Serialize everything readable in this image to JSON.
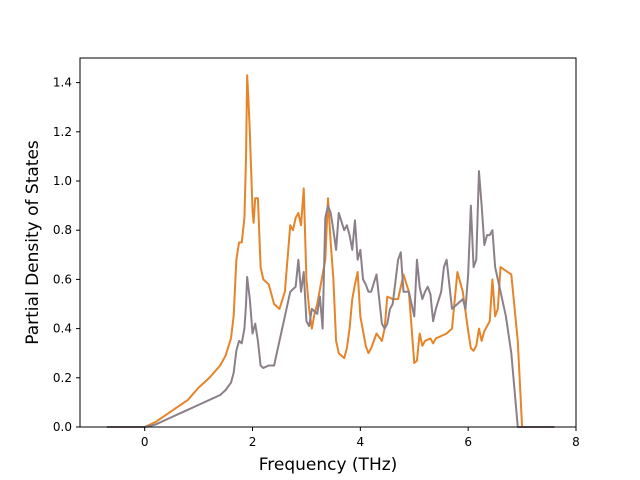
{
  "chart_data": {
    "type": "line",
    "title": "",
    "xlabel": "Frequency (THz)",
    "ylabel": "Partial Density of States",
    "xlim": [
      -1.2,
      8.0
    ],
    "ylim": [
      0.0,
      1.5
    ],
    "xticks": [
      0,
      2,
      4,
      6,
      8
    ],
    "yticks": [
      0.0,
      0.2,
      0.4,
      0.6,
      0.8,
      1.0,
      1.2,
      1.4
    ],
    "xtick_labels": [
      "0",
      "2",
      "4",
      "6",
      "8"
    ],
    "ytick_labels": [
      "0.0",
      "0.2",
      "0.4",
      "0.6",
      "0.8",
      "1.0",
      "1.2",
      "1.4"
    ],
    "grid": false,
    "series": [
      {
        "color": "#e6842a",
        "x": [
          -0.7,
          0.0,
          0.2,
          0.4,
          0.6,
          0.8,
          1.0,
          1.2,
          1.4,
          1.5,
          1.6,
          1.65,
          1.7,
          1.75,
          1.8,
          1.85,
          1.88,
          1.9,
          1.92,
          1.95,
          2.0,
          2.02,
          2.05,
          2.1,
          2.15,
          2.2,
          2.3,
          2.4,
          2.5,
          2.6,
          2.7,
          2.75,
          2.8,
          2.85,
          2.9,
          2.95,
          3.0,
          3.05,
          3.1,
          3.15,
          3.2,
          3.3,
          3.35,
          3.4,
          3.45,
          3.5,
          3.55,
          3.6,
          3.7,
          3.75,
          3.8,
          3.85,
          3.9,
          3.95,
          4.0,
          4.1,
          4.15,
          4.2,
          4.25,
          4.3,
          4.4,
          4.45,
          4.5,
          4.6,
          4.7,
          4.8,
          4.9,
          5.0,
          5.05,
          5.1,
          5.15,
          5.2,
          5.3,
          5.35,
          5.4,
          5.5,
          5.6,
          5.7,
          5.8,
          5.9,
          6.0,
          6.05,
          6.1,
          6.15,
          6.2,
          6.25,
          6.3,
          6.4,
          6.45,
          6.5,
          6.55,
          6.6,
          6.8,
          6.92,
          7.0,
          7.6
        ],
        "y": [
          0.0,
          0.0,
          0.02,
          0.05,
          0.08,
          0.11,
          0.16,
          0.2,
          0.25,
          0.29,
          0.36,
          0.45,
          0.68,
          0.75,
          0.75,
          0.85,
          1.1,
          1.43,
          1.35,
          1.2,
          0.88,
          0.83,
          0.93,
          0.93,
          0.65,
          0.6,
          0.58,
          0.5,
          0.48,
          0.55,
          0.82,
          0.8,
          0.85,
          0.87,
          0.82,
          0.97,
          0.6,
          0.48,
          0.4,
          0.46,
          0.5,
          0.62,
          0.68,
          0.93,
          0.75,
          0.6,
          0.35,
          0.3,
          0.28,
          0.32,
          0.4,
          0.52,
          0.58,
          0.63,
          0.45,
          0.33,
          0.3,
          0.32,
          0.35,
          0.38,
          0.35,
          0.4,
          0.53,
          0.52,
          0.52,
          0.62,
          0.55,
          0.26,
          0.27,
          0.38,
          0.33,
          0.35,
          0.36,
          0.34,
          0.36,
          0.37,
          0.38,
          0.4,
          0.63,
          0.55,
          0.39,
          0.32,
          0.31,
          0.33,
          0.4,
          0.35,
          0.39,
          0.43,
          0.6,
          0.45,
          0.48,
          0.65,
          0.62,
          0.35,
          0.0,
          0.0
        ]
      },
      {
        "color": "#8b8089",
        "x": [
          -0.7,
          0.0,
          0.2,
          0.4,
          0.6,
          0.8,
          1.0,
          1.2,
          1.4,
          1.5,
          1.6,
          1.65,
          1.7,
          1.75,
          1.8,
          1.85,
          1.88,
          1.9,
          1.95,
          2.0,
          2.05,
          2.1,
          2.15,
          2.2,
          2.3,
          2.4,
          2.5,
          2.6,
          2.7,
          2.8,
          2.85,
          2.9,
          2.95,
          3.0,
          3.05,
          3.1,
          3.2,
          3.25,
          3.3,
          3.35,
          3.4,
          3.45,
          3.5,
          3.55,
          3.6,
          3.7,
          3.75,
          3.8,
          3.85,
          3.9,
          3.95,
          4.0,
          4.05,
          4.1,
          4.15,
          4.2,
          4.3,
          4.4,
          4.45,
          4.5,
          4.55,
          4.6,
          4.7,
          4.75,
          4.8,
          4.9,
          5.0,
          5.05,
          5.1,
          5.15,
          5.2,
          5.25,
          5.3,
          5.35,
          5.4,
          5.5,
          5.55,
          5.6,
          5.7,
          5.8,
          5.9,
          5.95,
          6.0,
          6.05,
          6.1,
          6.15,
          6.2,
          6.25,
          6.3,
          6.35,
          6.4,
          6.45,
          6.5,
          6.6,
          6.7,
          6.8,
          6.92,
          7.0,
          7.6
        ],
        "y": [
          0.0,
          0.0,
          0.01,
          0.03,
          0.05,
          0.07,
          0.09,
          0.11,
          0.13,
          0.15,
          0.18,
          0.22,
          0.31,
          0.35,
          0.34,
          0.4,
          0.5,
          0.61,
          0.52,
          0.38,
          0.42,
          0.35,
          0.25,
          0.24,
          0.25,
          0.25,
          0.35,
          0.45,
          0.55,
          0.57,
          0.68,
          0.55,
          0.63,
          0.43,
          0.41,
          0.48,
          0.46,
          0.53,
          0.4,
          0.85,
          0.9,
          0.87,
          0.8,
          0.72,
          0.87,
          0.8,
          0.82,
          0.78,
          0.72,
          0.84,
          0.68,
          0.72,
          0.6,
          0.58,
          0.55,
          0.55,
          0.62,
          0.42,
          0.4,
          0.42,
          0.48,
          0.5,
          0.68,
          0.71,
          0.55,
          0.55,
          0.45,
          0.68,
          0.57,
          0.52,
          0.55,
          0.57,
          0.54,
          0.43,
          0.48,
          0.55,
          0.65,
          0.68,
          0.48,
          0.5,
          0.52,
          0.48,
          0.62,
          0.9,
          0.65,
          0.68,
          1.04,
          0.9,
          0.74,
          0.78,
          0.78,
          0.8,
          0.65,
          0.55,
          0.45,
          0.3,
          0.0,
          0.0,
          0.0
        ]
      }
    ]
  }
}
